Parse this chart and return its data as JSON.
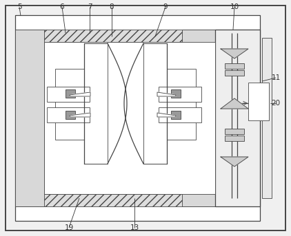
{
  "bg_color": "#f0f0f0",
  "line_color": "#444444",
  "label_color": "#333333",
  "label_fs": 7.5,
  "lw_thick": 1.4,
  "lw_med": 0.9,
  "lw_thin": 0.6
}
